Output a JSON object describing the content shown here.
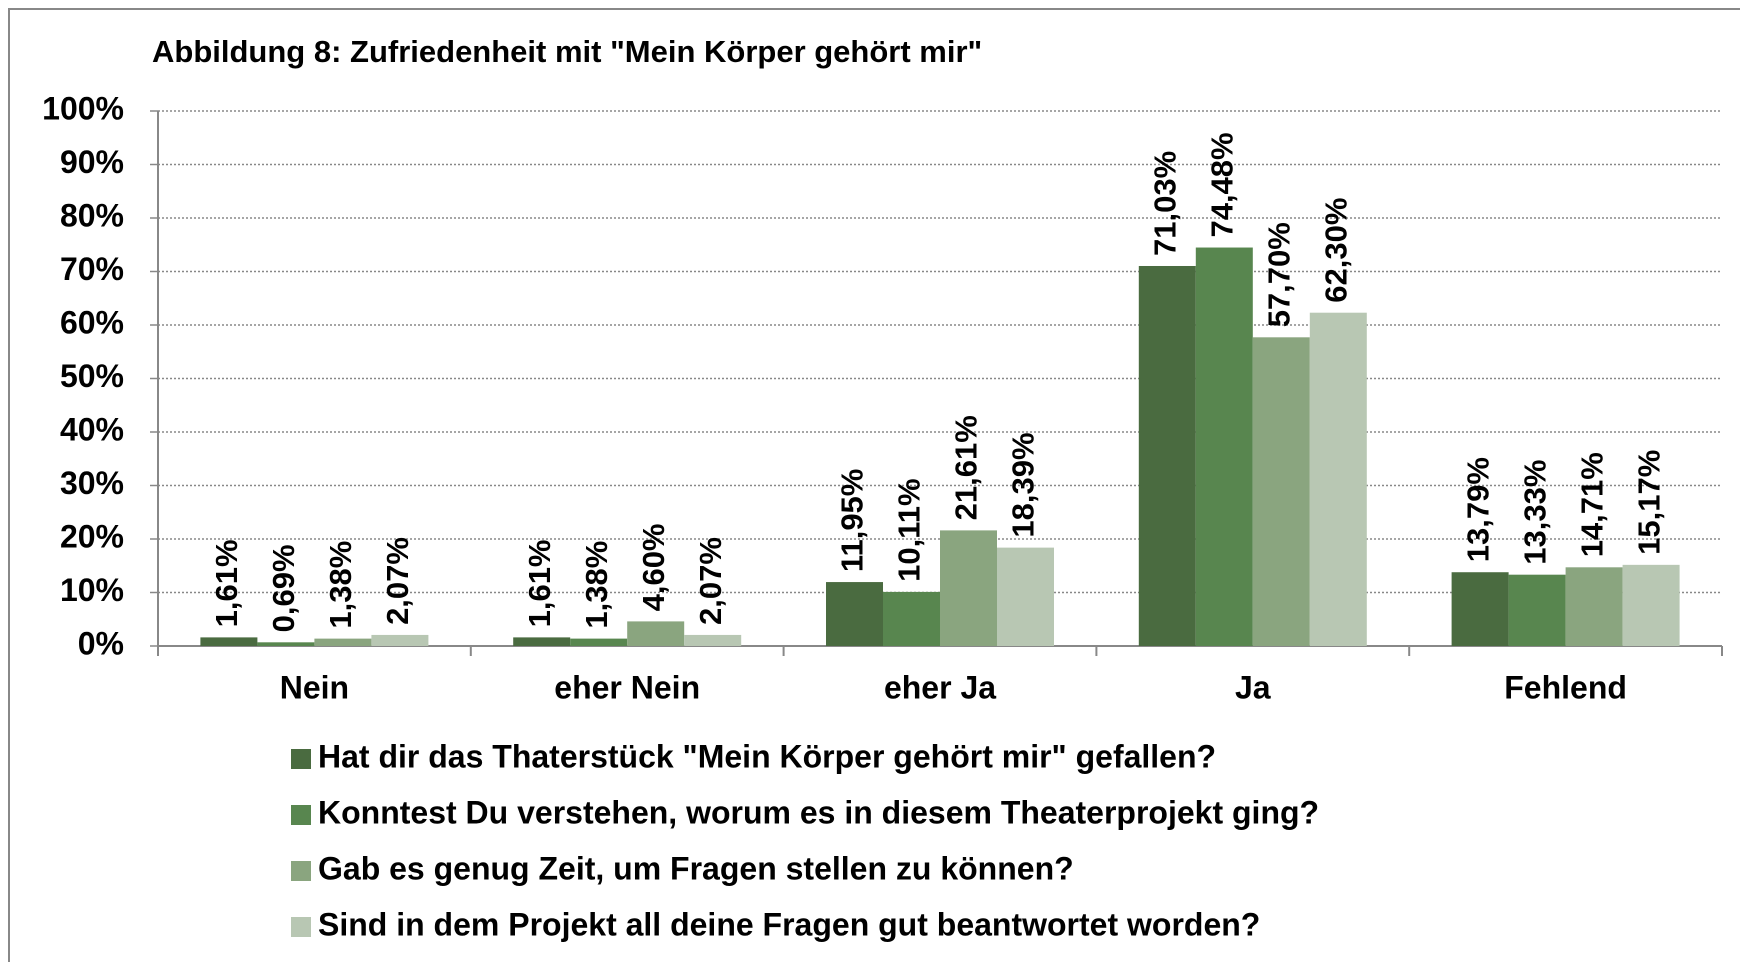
{
  "chart_data": {
    "type": "bar",
    "title": "Abbildung 8: Zufriedenheit mit \"Mein Körper gehört mir\"",
    "categories": [
      "Nein",
      "eher Nein",
      "eher Ja",
      "Ja",
      "Fehlend"
    ],
    "series": [
      {
        "name": "Hat dir das Thaterstück \"Mein Körper gehört mir\" gefallen?",
        "color": "#4a6b40",
        "values": [
          1.61,
          1.61,
          11.95,
          71.03,
          13.79
        ],
        "value_labels": [
          "1,61%",
          "1,61%",
          "11,95%",
          "71,03%",
          "13,79%"
        ]
      },
      {
        "name": "Konntest Du verstehen, worum es in diesem Theaterprojekt ging?",
        "color": "#58864f",
        "values": [
          0.69,
          1.38,
          10.11,
          74.48,
          13.33
        ],
        "value_labels": [
          "0,69%",
          "1,38%",
          "10,11%",
          "74,48%",
          "13,33%"
        ]
      },
      {
        "name": "Gab es genug Zeit, um Fragen stellen zu können?",
        "color": "#8aa57f",
        "values": [
          1.38,
          4.6,
          21.61,
          57.7,
          14.71
        ],
        "value_labels": [
          "1,38%",
          "4,60%",
          "21,61%",
          "57,70%",
          "14,71%"
        ]
      },
      {
        "name": "Sind in dem Projekt all deine Fragen gut beantwortet worden?",
        "color": "#b8c7b3",
        "values": [
          2.07,
          2.07,
          18.39,
          62.3,
          15.17
        ],
        "value_labels": [
          "2,07%",
          "2,07%",
          "18,39%",
          "62,30%",
          "15,17%"
        ]
      }
    ],
    "ylim": [
      0,
      100
    ],
    "yticks": [
      {
        "value": 0,
        "label": "0%"
      },
      {
        "value": 10,
        "label": "10%"
      },
      {
        "value": 20,
        "label": "20%"
      },
      {
        "value": 30,
        "label": "30%"
      },
      {
        "value": 40,
        "label": "40%"
      },
      {
        "value": 50,
        "label": "50%"
      },
      {
        "value": 60,
        "label": "60%"
      },
      {
        "value": 70,
        "label": "70%"
      },
      {
        "value": 80,
        "label": "80%"
      },
      {
        "value": 90,
        "label": "90%"
      },
      {
        "value": 100,
        "label": "100%"
      }
    ],
    "grid": true,
    "legend": "bottom"
  }
}
